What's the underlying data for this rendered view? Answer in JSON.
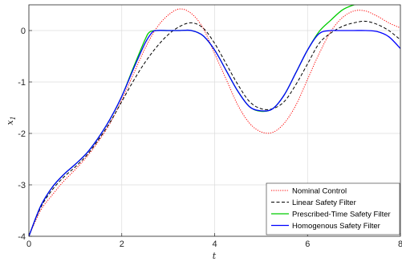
{
  "chart_data": {
    "type": "line",
    "title": "",
    "xlabel": "t",
    "ylabel": "x_1",
    "xlim": [
      0,
      8
    ],
    "ylim": [
      -4,
      0.5
    ],
    "xticks": [
      "0",
      "2",
      "4",
      "6",
      "8"
    ],
    "yticks": [
      "0",
      "-1",
      "-2",
      "-3",
      "-4"
    ],
    "grid": true,
    "legend_position": "bottom-right",
    "series": [
      {
        "name": "Nominal Control",
        "color": "#ff0000",
        "style": "dotted",
        "x": [
          0,
          0.25,
          0.5,
          0.75,
          1.0,
          1.25,
          1.5,
          1.75,
          2.0,
          2.25,
          2.5,
          2.75,
          3.0,
          3.25,
          3.5,
          3.75,
          4.0,
          4.25,
          4.5,
          4.75,
          5.0,
          5.25,
          5.5,
          5.75,
          6.0,
          6.25,
          6.5,
          6.75,
          7.0,
          7.25,
          7.5,
          7.75,
          8.0
        ],
        "y": [
          -4.0,
          -3.5,
          -3.2,
          -2.93,
          -2.7,
          -2.45,
          -2.15,
          -1.8,
          -1.35,
          -0.85,
          -0.35,
          0.05,
          0.3,
          0.42,
          0.33,
          0.05,
          -0.45,
          -0.95,
          -1.45,
          -1.8,
          -1.97,
          -1.98,
          -1.8,
          -1.45,
          -0.95,
          -0.45,
          -0.02,
          0.25,
          0.38,
          0.38,
          0.28,
          0.15,
          0.05
        ]
      },
      {
        "name": "Linear Safety Filter",
        "color": "#000000",
        "style": "dashed",
        "x": [
          0,
          0.25,
          0.5,
          0.75,
          1.0,
          1.25,
          1.5,
          1.75,
          2.0,
          2.25,
          2.5,
          2.75,
          3.0,
          3.25,
          3.5,
          3.75,
          4.0,
          4.25,
          4.5,
          4.75,
          5.0,
          5.25,
          5.5,
          5.75,
          6.0,
          6.25,
          6.5,
          6.75,
          7.0,
          7.25,
          7.5,
          7.75,
          8.0
        ],
        "y": [
          -4.0,
          -3.45,
          -3.1,
          -2.85,
          -2.65,
          -2.42,
          -2.12,
          -1.78,
          -1.38,
          -0.98,
          -0.62,
          -0.32,
          -0.08,
          0.08,
          0.15,
          0.05,
          -0.25,
          -0.65,
          -1.05,
          -1.38,
          -1.52,
          -1.52,
          -1.38,
          -1.05,
          -0.65,
          -0.25,
          -0.05,
          0.08,
          0.15,
          0.18,
          0.12,
          0.0,
          -0.18
        ]
      },
      {
        "name": "Prescribed-Time Safety Filter",
        "color": "#00cc00",
        "style": "solid",
        "x": [
          0,
          0.25,
          0.5,
          0.75,
          1.0,
          1.25,
          1.5,
          1.75,
          2.0,
          2.25,
          2.5,
          2.6,
          2.75,
          3.0,
          3.25,
          3.5,
          3.75,
          4.0,
          4.25,
          4.5,
          4.75,
          5.0,
          5.25,
          5.5,
          5.75,
          6.0,
          6.25,
          6.5,
          6.75,
          7.0,
          7.15
        ],
        "y": [
          -4.0,
          -3.42,
          -3.05,
          -2.8,
          -2.6,
          -2.38,
          -2.08,
          -1.72,
          -1.28,
          -0.72,
          -0.18,
          -0.03,
          0.0,
          0.0,
          0.0,
          0.0,
          -0.1,
          -0.38,
          -0.78,
          -1.18,
          -1.48,
          -1.57,
          -1.52,
          -1.25,
          -0.82,
          -0.38,
          -0.02,
          0.2,
          0.4,
          0.5,
          0.52
        ]
      },
      {
        "name": "Homogenous Safety Filter",
        "color": "#0000ff",
        "style": "solid",
        "x": [
          0,
          0.25,
          0.5,
          0.75,
          1.0,
          1.25,
          1.5,
          1.75,
          2.0,
          2.25,
          2.5,
          2.65,
          2.75,
          3.0,
          3.25,
          3.5,
          3.75,
          4.0,
          4.25,
          4.5,
          4.75,
          5.0,
          5.25,
          5.5,
          5.75,
          6.0,
          6.25,
          6.5,
          6.6,
          6.75,
          7.0,
          7.25,
          7.5,
          7.75,
          8.0
        ],
        "y": [
          -4.0,
          -3.42,
          -3.05,
          -2.8,
          -2.6,
          -2.38,
          -2.08,
          -1.72,
          -1.28,
          -0.75,
          -0.25,
          -0.04,
          0.0,
          0.0,
          0.0,
          0.0,
          -0.1,
          -0.38,
          -0.78,
          -1.18,
          -1.48,
          -1.56,
          -1.52,
          -1.25,
          -0.82,
          -0.38,
          -0.06,
          0.0,
          0.0,
          0.0,
          0.0,
          0.0,
          -0.02,
          -0.12,
          -0.35
        ]
      }
    ]
  }
}
